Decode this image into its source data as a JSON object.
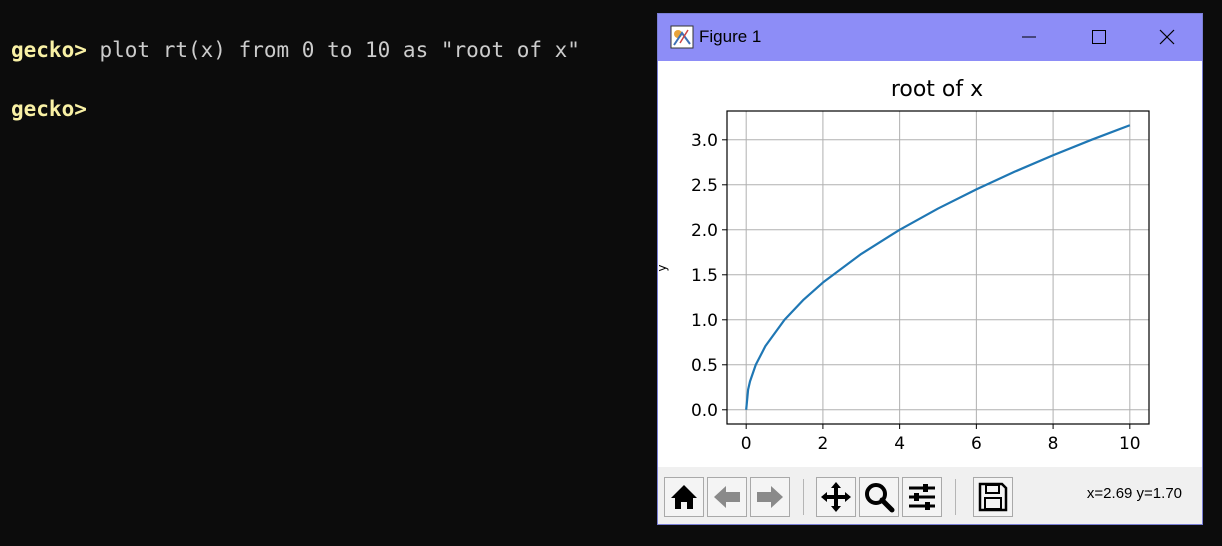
{
  "terminal": {
    "lines": [
      {
        "prompt": "gecko>",
        "command": " plot rt(x) from 0 to 10 as \"root of x\""
      },
      {
        "prompt": "gecko>",
        "command": ""
      }
    ],
    "colors": {
      "background": "#0c0c0c",
      "prompt": "#f9f1a5",
      "text": "#cccccc"
    }
  },
  "figure_window": {
    "title": "Figure 1",
    "app_icon": "matplotlib-figure-icon",
    "controls": [
      "minimize-icon",
      "maximize-icon",
      "close-icon"
    ],
    "titlebar_color": "#8d8df7",
    "toolbar": {
      "buttons": [
        "home-icon",
        "back-arrow-icon",
        "forward-arrow-icon",
        "pan-icon",
        "zoom-magnifier-icon",
        "subplots-config-icon",
        "save-icon"
      ],
      "coords": "x=2.69 y=1.70"
    }
  },
  "chart_data": {
    "type": "line",
    "title": "root of x",
    "xlabel": "",
    "ylabel": "y",
    "x": [
      0,
      0.05,
      0.1,
      0.25,
      0.5,
      1,
      1.5,
      2,
      3,
      4,
      5,
      6,
      7,
      8,
      9,
      10
    ],
    "series": [
      {
        "values": [
          0,
          0.224,
          0.316,
          0.5,
          0.707,
          1,
          1.225,
          1.414,
          1.732,
          2,
          2.236,
          2.449,
          2.646,
          2.828,
          3,
          3.162
        ]
      }
    ],
    "xticks": [
      "0",
      "2",
      "4",
      "6",
      "8",
      "10"
    ],
    "yticks": [
      "0.0",
      "0.5",
      "1.0",
      "1.5",
      "2.0",
      "2.5",
      "3.0"
    ],
    "xlim": [
      -0.5,
      10.5
    ],
    "ylim": [
      -0.158,
      3.32
    ],
    "grid": true,
    "line_color": "#1f77b4"
  }
}
